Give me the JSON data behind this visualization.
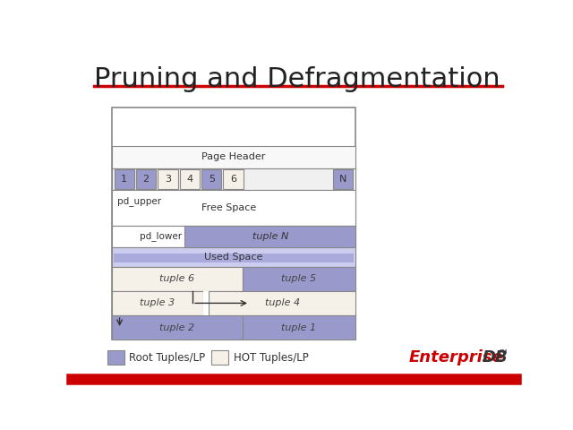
{
  "title": "Pruning and Defragmentation",
  "title_fontsize": 22,
  "title_color": "#222222",
  "bg_color": "#ffffff",
  "red_line_color": "#cc0000",
  "purple_fill": "#9999cc",
  "purple_lighter": "#ccccee",
  "hot_fill": "#f5f0e8",
  "border_color": "#888888",
  "page_header_label": "Page Header",
  "free_space_label": "Free Space",
  "used_space_label": "Used Space",
  "pd_upper_label": "pd_upper",
  "pd_lower_label": "pd_lower",
  "tuple_labels": [
    "1",
    "2",
    "3",
    "4",
    "5",
    "6",
    "N"
  ],
  "tuple_colors": [
    "#9999cc",
    "#9999cc",
    "#f5f0e8",
    "#f5f0e8",
    "#9999cc",
    "#f5f0e8",
    "#9999cc"
  ],
  "legend_root_label": "Root Tuples/LP",
  "legend_hot_label": "HOT Tuples/LP",
  "enterprise_color": "#cc0000",
  "db_color": "#333333"
}
